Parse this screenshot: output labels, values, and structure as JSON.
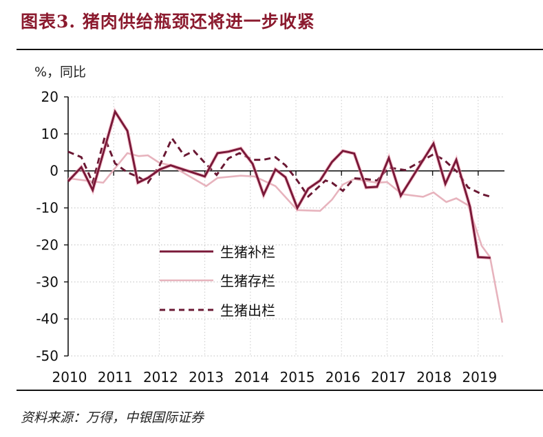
{
  "header": {
    "title": "图表3. 猪肉供给瓶颈还将进一步收紧"
  },
  "footer": {
    "source": "资料来源：万得，中银国际证券"
  },
  "colors": {
    "title": "#8b1a2e",
    "supplement": "#7a1838",
    "stock": "#e7b3bd",
    "slaughter": "#6a1833",
    "halo": "#f2a7b8"
  },
  "chart_data": {
    "type": "line",
    "title": "图表3. 猪肉供给瓶颈还将进一步收紧",
    "ylabel": "%，同比",
    "xlabel": "",
    "ylim": [
      -50,
      20
    ],
    "yticks": [
      20,
      10,
      0,
      -10,
      -20,
      -30,
      -40,
      -50
    ],
    "xlim": [
      2010,
      2019.55
    ],
    "xticks": [
      "2010",
      "2011",
      "2012",
      "2013",
      "2014",
      "2015",
      "2016",
      "2017",
      "2018",
      "2019"
    ],
    "grid": true,
    "legend_position": "center-left inside plot",
    "series": [
      {
        "name": "生猪补栏",
        "style": "solid-dark",
        "x": [
          2010.0,
          2010.29,
          2010.54,
          2011.03,
          2011.3,
          2011.53,
          2011.75,
          2012.01,
          2012.25,
          2013.0,
          2013.28,
          2013.52,
          2013.79,
          2014.05,
          2014.29,
          2014.55,
          2014.77,
          2015.03,
          2015.27,
          2015.53,
          2015.79,
          2016.03,
          2016.28,
          2016.54,
          2016.78,
          2017.04,
          2017.3,
          2018.02,
          2018.28,
          2018.52,
          2018.82,
          2019.0,
          2019.27
        ],
        "values": [
          -2.8,
          1.0,
          -5.2,
          16.0,
          10.8,
          -3.2,
          -1.9,
          0.4,
          1.5,
          -1.5,
          4.8,
          5.2,
          6.1,
          1.9,
          -6.5,
          0.4,
          -1.7,
          -10.0,
          -4.8,
          -2.6,
          2.4,
          5.4,
          4.7,
          -4.5,
          -4.3,
          3.5,
          -6.7,
          7.4,
          -3.5,
          3.0,
          -9.7,
          -23.3,
          -23.5
        ]
      },
      {
        "name": "生猪存栏",
        "style": "solid-light",
        "x": [
          2010.0,
          2010.77,
          2011.3,
          2011.55,
          2011.75,
          2012.0,
          2012.25,
          2013.03,
          2013.28,
          2013.79,
          2014.09,
          2014.55,
          2015.03,
          2015.53,
          2015.79,
          2016.03,
          2016.28,
          2016.78,
          2017.0,
          2017.33,
          2017.79,
          2018.02,
          2018.3,
          2018.52,
          2018.78,
          2019.08,
          2019.26,
          2019.53
        ],
        "values": [
          -2.0,
          -3.2,
          4.8,
          4.0,
          4.2,
          2.2,
          1.5,
          -4.1,
          -1.9,
          -1.3,
          -1.5,
          -4.1,
          -10.6,
          -10.8,
          -7.8,
          -3.7,
          -2.2,
          -3.2,
          -3.0,
          -6.3,
          -7.0,
          -5.8,
          -8.4,
          -7.4,
          -9.3,
          -20.3,
          -23.3,
          -41.0
        ]
      },
      {
        "name": "生猪出栏",
        "style": "dashed-dark",
        "x": [
          2010.0,
          2010.29,
          2010.54,
          2010.8,
          2011.03,
          2011.3,
          2011.55,
          2011.75,
          2012.01,
          2012.28,
          2012.55,
          2012.76,
          2013.0,
          2013.26,
          2013.52,
          2013.76,
          2014.05,
          2014.28,
          2014.55,
          2014.77,
          2015.03,
          2015.27,
          2015.65,
          2015.79,
          2016.03,
          2016.28,
          2016.54,
          2016.78,
          2017.04,
          2017.4,
          2018.02,
          2018.25,
          2018.55,
          2018.78,
          2019.08,
          2019.28
        ],
        "values": [
          5.2,
          3.7,
          -3.2,
          9.0,
          2.0,
          -0.4,
          -1.7,
          -3.2,
          1.5,
          8.8,
          4.1,
          5.4,
          2.2,
          -1.1,
          3.4,
          4.8,
          3.0,
          3.0,
          3.7,
          1.5,
          -2.6,
          -6.9,
          -2.6,
          -3.2,
          -5.4,
          -2.0,
          -2.2,
          -2.6,
          0.9,
          0.2,
          4.5,
          3.0,
          -0.4,
          -4.5,
          -6.3,
          -7.0
        ]
      }
    ]
  },
  "axis": {
    "unit_label": "%，同比",
    "y_labels": [
      "20",
      "10",
      "0",
      "-10",
      "-20",
      "-30",
      "-40",
      "-50"
    ],
    "x_labels": [
      "2010",
      "2011",
      "2012",
      "2013",
      "2014",
      "2015",
      "2016",
      "2017",
      "2018",
      "2019"
    ]
  },
  "legend": {
    "items": [
      "生猪补栏",
      "生猪存栏",
      "生猪出栏"
    ]
  }
}
